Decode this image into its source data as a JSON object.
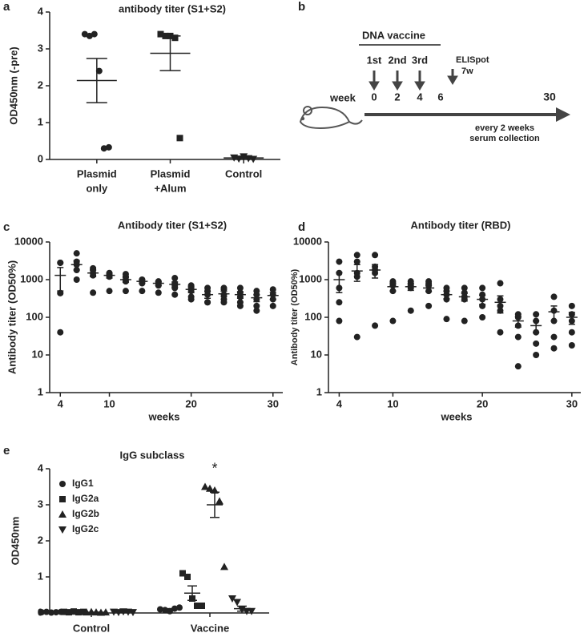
{
  "chart_data": [
    {
      "type": "dot",
      "panel_label": "a",
      "title": "antibody titer (S1+S2)",
      "y_label": "OD450nm (-pre)",
      "categories": [
        [
          "Plasmid",
          "only"
        ],
        [
          "Plasmid",
          "+Alum"
        ],
        [
          "Control"
        ]
      ],
      "ylim": [
        0,
        4
      ],
      "yticks": [
        0,
        1,
        2,
        3,
        4
      ],
      "color": "#222222",
      "series": [
        {
          "markers": [
            "circle",
            "square",
            "triangle-down"
          ],
          "groups": [
            {
              "points": [
                3.4,
                3.35,
                3.4,
                2.4,
                0.3,
                0.33
              ],
              "mean": 2.14,
              "sem": 0.6
            },
            {
              "points": [
                3.4,
                3.35,
                3.35,
                3.3,
                0.58
              ],
              "mean": 2.88,
              "sem": 0.47
            },
            {
              "points": [
                0.05,
                0.02,
                0.08,
                0.03,
                0.01
              ],
              "mean": 0.04,
              "sem": 0.01
            }
          ]
        }
      ]
    },
    {
      "type": "dot",
      "panel_label": "c",
      "title": "Antibody titer (S1+S2)",
      "y_label": "Antibody titer (OD50%)",
      "x_label": "weeks",
      "log": true,
      "ylim": [
        1,
        10000
      ],
      "yticks": [
        1,
        10,
        100,
        1000,
        10000
      ],
      "xlim": [
        2.7,
        31.2
      ],
      "xticks": [
        4,
        10,
        20,
        30
      ],
      "color": "#222222",
      "x": [
        4,
        6,
        8,
        10,
        12,
        14,
        16,
        18,
        20,
        22,
        24,
        26,
        28,
        30
      ],
      "series": [
        {
          "markers": [
            "circle"
          ],
          "groups": [
            {
              "points": [
                2800,
                2800,
                440,
                440,
                40
              ],
              "mean": 1300,
              "sem": 800
            },
            {
              "points": [
                5000,
                3000,
                2500,
                1800,
                1000
              ],
              "mean": 2500,
              "sem": 700
            },
            {
              "points": [
                2000,
                1800,
                1500,
                1300,
                450
              ],
              "mean": 1500,
              "sem": 300
            },
            {
              "points": [
                1500,
                1400,
                1300,
                1200,
                500
              ],
              "mean": 1300,
              "sem": 200
            },
            {
              "points": [
                1400,
                1200,
                1000,
                900,
                500
              ],
              "mean": 1000,
              "sem": 150
            },
            {
              "points": [
                1000,
                900,
                900,
                800,
                500
              ],
              "mean": 900,
              "sem": 100
            },
            {
              "points": [
                900,
                850,
                800,
                700,
                450
              ],
              "mean": 800,
              "sem": 100
            },
            {
              "points": [
                1100,
                800,
                700,
                600,
                400
              ],
              "mean": 750,
              "sem": 120
            },
            {
              "points": [
                700,
                600,
                500,
                350,
                300
              ],
              "mean": 550,
              "sem": 100
            },
            {
              "points": [
                600,
                500,
                400,
                250,
                250
              ],
              "mean": 400,
              "sem": 80
            },
            {
              "points": [
                600,
                550,
                400,
                300,
                250
              ],
              "mean": 420,
              "sem": 70
            },
            {
              "points": [
                600,
                450,
                350,
                250,
                200
              ],
              "mean": 400,
              "sem": 80
            },
            {
              "points": [
                500,
                400,
                300,
                200,
                150
              ],
              "mean": 330,
              "sem": 70
            },
            {
              "points": [
                550,
                400,
                300,
                200
              ],
              "mean": 380,
              "sem": 80
            }
          ]
        }
      ]
    },
    {
      "type": "dot",
      "panel_label": "d",
      "title": "Antibody titer (RBD)",
      "y_label": "Antibody titer (OD50%)",
      "x_label": "weeks",
      "log": true,
      "ylim": [
        1,
        10000
      ],
      "yticks": [
        1,
        10,
        100,
        1000,
        10000
      ],
      "xlim": [
        2.8,
        31
      ],
      "xticks": [
        4,
        10,
        20,
        30
      ],
      "color": "#222222",
      "x": [
        4,
        6,
        8,
        10,
        12,
        14,
        16,
        18,
        20,
        22,
        24,
        26,
        28,
        30
      ],
      "series": [
        {
          "markers": [
            "circle"
          ],
          "groups": [
            {
              "points": [
                3000,
                1500,
                600,
                250,
                80
              ],
              "mean": 1000,
              "sem": 550
            },
            {
              "points": [
                4500,
                3000,
                1500,
                1200,
                30
              ],
              "mean": 1700,
              "sem": 800
            },
            {
              "points": [
                4500,
                2200,
                1800,
                1500,
                60
              ],
              "mean": 1800,
              "sem": 700
            },
            {
              "points": [
                900,
                800,
                700,
                500,
                80
              ],
              "mean": 650,
              "sem": 150
            },
            {
              "points": [
                900,
                800,
                700,
                600,
                150
              ],
              "mean": 650,
              "sem": 130
            },
            {
              "points": [
                900,
                800,
                700,
                500,
                200
              ],
              "mean": 600,
              "sem": 120
            },
            {
              "points": [
                600,
                500,
                400,
                300,
                90
              ],
              "mean": 400,
              "sem": 90
            },
            {
              "points": [
                600,
                450,
                350,
                300,
                80
              ],
              "mean": 350,
              "sem": 80
            },
            {
              "points": [
                600,
                400,
                300,
                200,
                100
              ],
              "mean": 300,
              "sem": 80
            },
            {
              "points": [
                800,
                300,
                200,
                150,
                40
              ],
              "mean": 250,
              "sem": 120
            },
            {
              "points": [
                120,
                100,
                60,
                30,
                5
              ],
              "mean": 80,
              "sem": 25
            },
            {
              "points": [
                120,
                80,
                40,
                20,
                10
              ],
              "mean": 60,
              "sem": 20
            },
            {
              "points": [
                350,
                150,
                80,
                30,
                15
              ],
              "mean": 140,
              "sem": 60
            },
            {
              "points": [
                200,
                120,
                80,
                40,
                18
              ],
              "mean": 100,
              "sem": 35
            }
          ]
        }
      ]
    },
    {
      "type": "dot",
      "panel_label": "e",
      "title": "IgG subclass",
      "y_label": "OD450nm",
      "annotation": "*",
      "categories": [
        [
          "Control"
        ],
        [
          "Vaccine"
        ]
      ],
      "ylim": [
        0,
        4
      ],
      "yticks": [
        0,
        1,
        2,
        3,
        4
      ],
      "color": "#222222",
      "series": [
        {
          "name": "IgG1",
          "markers": [
            "circle"
          ],
          "groups": [
            {
              "points": [
                0.02,
                0.03,
                0.01,
                0.02,
                0.03
              ],
              "mean": 0.02,
              "sem": 0.004
            },
            {
              "points": [
                0.1,
                0.08,
                0.05,
                0.12,
                0.15
              ],
              "mean": 0.1,
              "sem": 0.02
            }
          ]
        },
        {
          "name": "IgG2a",
          "markers": [
            "square"
          ],
          "groups": [
            {
              "points": [
                0.03,
                0.02,
                0.04,
                0.02,
                0.03
              ],
              "mean": 0.03,
              "sem": 0.004
            },
            {
              "points": [
                1.1,
                1.0,
                0.4,
                0.2,
                0.2
              ],
              "mean": 0.55,
              "sem": 0.2
            }
          ]
        },
        {
          "name": "IgG2b",
          "markers": [
            "triangle-up"
          ],
          "groups": [
            {
              "points": [
                0.02,
                0.03,
                0.02,
                0.01,
                0.02
              ],
              "mean": 0.02,
              "sem": 0.003
            },
            {
              "points": [
                3.5,
                3.45,
                3.4,
                3.1,
                1.28
              ],
              "mean": 3.0,
              "sem": 0.35
            }
          ]
        },
        {
          "name": "IgG2c",
          "markers": [
            "triangle-down"
          ],
          "groups": [
            {
              "points": [
                0.03,
                0.02,
                0.04,
                0.03,
                0.02
              ],
              "mean": 0.03,
              "sem": 0.004
            },
            {
              "points": [
                0.4,
                0.3,
                0.1,
                0.05,
                0.05
              ],
              "mean": 0.12,
              "sem": 0.07
            }
          ]
        }
      ]
    }
  ],
  "diagram": {
    "panel_label": "b",
    "heading": "DNA vaccine",
    "doses": [
      "1st",
      "2nd",
      "3rd"
    ],
    "assay": "ELISpot",
    "assay_time": "7w",
    "axis_label": "week",
    "week_labels": [
      "0",
      "2",
      "4",
      "6",
      "30"
    ],
    "note": [
      "every 2 weeks",
      "serum collection"
    ]
  }
}
